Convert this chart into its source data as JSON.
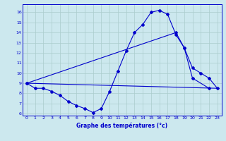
{
  "bg_color": "#cce8ee",
  "grid_color": "#aacccc",
  "line_color": "#0000cc",
  "xlabel": "Graphe des températures (°c)",
  "xlim": [
    -0.5,
    23.5
  ],
  "ylim": [
    5.8,
    16.8
  ],
  "yticks": [
    6,
    7,
    8,
    9,
    10,
    11,
    12,
    13,
    14,
    15,
    16
  ],
  "xticks": [
    0,
    1,
    2,
    3,
    4,
    5,
    6,
    7,
    8,
    9,
    10,
    11,
    12,
    13,
    14,
    15,
    16,
    17,
    18,
    19,
    20,
    21,
    22,
    23
  ],
  "series1_x": [
    0,
    1,
    2,
    3,
    4,
    5,
    6,
    7,
    8,
    9,
    10,
    11,
    12,
    13,
    14,
    15,
    16,
    17,
    18,
    19,
    20,
    22
  ],
  "series1_y": [
    9.0,
    8.5,
    8.5,
    8.2,
    7.8,
    7.2,
    6.8,
    6.5,
    6.1,
    6.5,
    8.2,
    10.2,
    12.2,
    14.0,
    14.8,
    16.0,
    16.2,
    15.8,
    13.8,
    12.5,
    9.5,
    8.5
  ],
  "series2_x": [
    0,
    23
  ],
  "series2_y": [
    9.0,
    8.5
  ],
  "series3_x": [
    0,
    18,
    19,
    20,
    21,
    22,
    23
  ],
  "series3_y": [
    9.0,
    14.0,
    12.5,
    10.5,
    10.0,
    9.5,
    8.5
  ]
}
